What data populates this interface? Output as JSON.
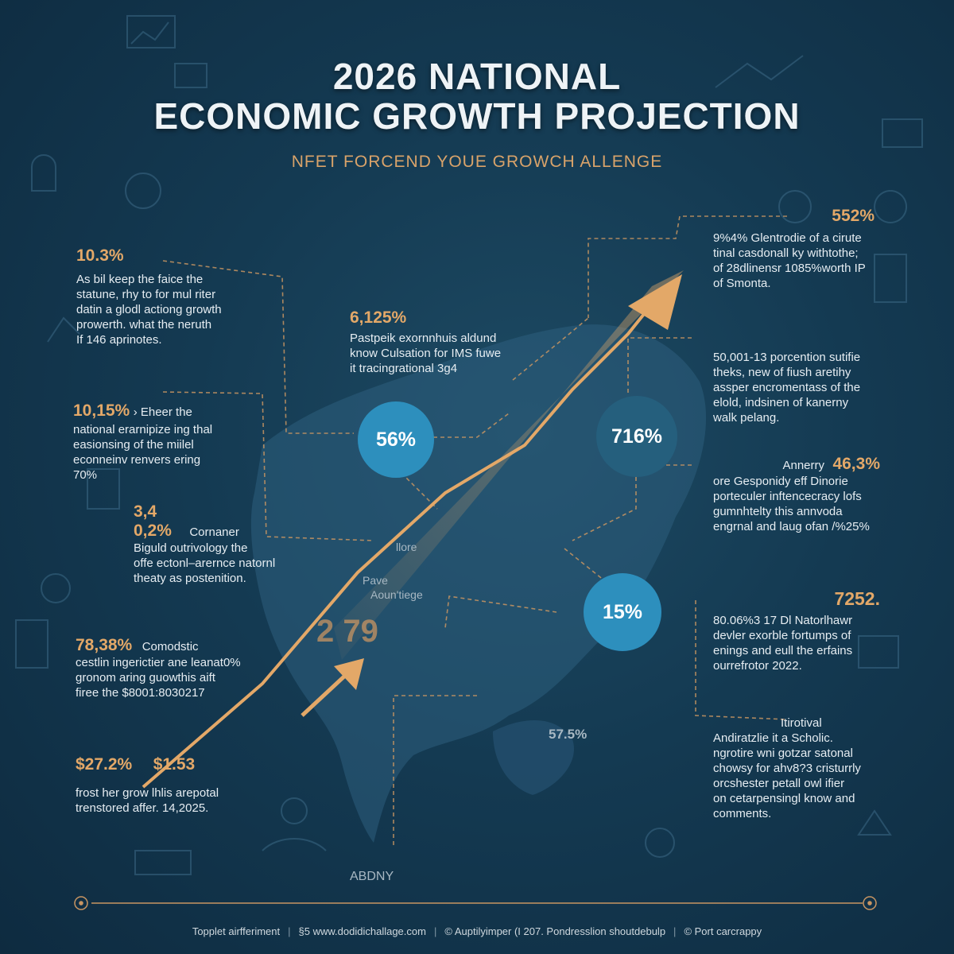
{
  "title_line1": "2026 NATIONAL",
  "title_line2": "ECONOMIC GROWTH PROJECTION",
  "subtitle": "NFET FORCEND YOUE GROWCH ALLENGE",
  "left_blocks": [
    {
      "value": "10.3%",
      "text": [
        "As bil keep the faice the",
        "statune, rhy to for mul riter",
        "datin a glodl actiong growth",
        "prowerth. what the neruth",
        "If 146 aprinotes."
      ]
    },
    {
      "value": "10,15%",
      "inline": "› Eheer the",
      "text": [
        "national erarnipize ing thal",
        "easionsing of the miilel",
        "econneinv renvers ering",
        "70%"
      ]
    },
    {
      "value": "3,4",
      "value2": "0,2%",
      "inline": "Cornaner",
      "text": [
        "Biguld outrivology the",
        "offe ectonl–arernce natornl",
        "theaty as postenition."
      ]
    },
    {
      "value": "78,38%",
      "inline": "Comodstic",
      "text": [
        "cestlin ingerictier ane leanat0%",
        "gronom aring guowthis aift",
        "firee the $8001:8030217"
      ]
    },
    {
      "value": "$27.2%",
      "value2": "$1.53",
      "text": [
        "frost her grow lhlis arepotal",
        "trenstored affer. 14,2025."
      ]
    }
  ],
  "center_block": {
    "value": "6,125%",
    "text": [
      "Pastpeik exornnhuis aldund",
      "know Culsation for IMS fuwe",
      "it tracingrational 3g4"
    ]
  },
  "right_blocks": [
    {
      "value": "552%",
      "text": [
        "9%4% Glentrodie of a cirute",
        "tinal casdonall ky withtothe;",
        "of 28dlinensr 1085%worth IP",
        "of Smonta."
      ]
    },
    {
      "value": "",
      "text": [
        "50,001-13 porcention sutifie",
        "theks, new of fiush aretihy",
        "assper encromentass of the",
        "elold, indsinen of kanerny",
        "walk pelang."
      ]
    },
    {
      "value": "46,3%",
      "inline": "Annerry",
      "text": [
        "ore Gesponidy eff Dinorie",
        "porteculer inftencecracy lofs",
        "gumnhtelty this annvoda",
        "engrnal and laug ofan /%25%"
      ]
    },
    {
      "value": "7252.",
      "text": [
        "80.06%3 17 Dl Natorlhawr",
        "devler exorble fortumps of",
        "enings and eull the erfains",
        "ourrefrotor 2022."
      ]
    },
    {
      "value": "",
      "inline": "Itirotival",
      "text": [
        "Andiratzlie it a Scholic.",
        "ngrotire wni gotzar satonal",
        "chowsy for ahv8?3 cristurrly",
        "orcshester petall owl ifier",
        "on cetarpensingl know and",
        "comments."
      ]
    }
  ],
  "circles": [
    {
      "label": "56%",
      "color": "#2d8fbd"
    },
    {
      "label": "716%",
      "color": "#255f7d"
    },
    {
      "label": "15%",
      "color": "#2d8fbd"
    }
  ],
  "map_labels": {
    "store": "llore",
    "pave": "Pave",
    "country": "Aoun'tiege",
    "year": "2 79",
    "pct": "57.5%",
    "city": "ABDNY"
  },
  "footer": [
    "Topplet airfferiment",
    "§5 www.dodidichallage.com",
    "© Auptilyimper (I 207. Pondresslion shoutdebulp",
    "© Port carcrappy"
  ],
  "colors": {
    "accent": "#e3a868",
    "circle_blue": "#2d8fbd",
    "circle_dark": "#255f7d",
    "bg": "#143a52"
  }
}
